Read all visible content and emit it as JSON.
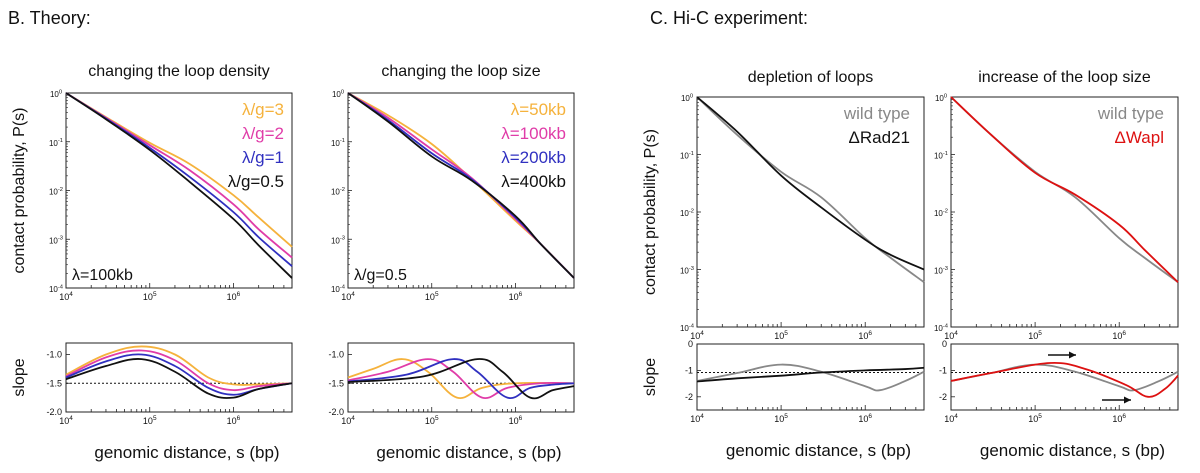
{
  "sections": {
    "theory": "B. Theory:",
    "hic": "C. Hi-C experiment:"
  },
  "colors": {
    "orange": "#f5b23c",
    "magenta": "#e03ca8",
    "blue": "#3030c0",
    "black": "#111111",
    "gray": "#888888",
    "red": "#dd1111"
  },
  "chart_data": [
    {
      "id": "theory-density-contact",
      "type": "line",
      "title": "changing the loop density",
      "ylabel": "contact probability, P(s)",
      "xscale": "log",
      "yscale": "log",
      "xlim": [
        10000,
        5000000
      ],
      "ylim": [
        0.0001,
        1
      ],
      "xticks": [
        "10^4",
        "10^5",
        "10^6"
      ],
      "yticks": [
        "10^0",
        "10^-1",
        "10^-2",
        "10^-3",
        "10^-4"
      ],
      "annotation": "λ=100kb",
      "legend_position": "top-right",
      "series": [
        {
          "name": "λ/g=3",
          "color": "#f5b23c",
          "x": [
            10000,
            30000,
            100000,
            300000,
            1000000,
            2000000,
            5000000
          ],
          "y": [
            1,
            0.32,
            0.095,
            0.035,
            0.008,
            0.0028,
            0.0007
          ]
        },
        {
          "name": "λ/g=2",
          "color": "#e03ca8",
          "x": [
            10000,
            30000,
            100000,
            300000,
            1000000,
            2000000,
            5000000
          ],
          "y": [
            1,
            0.31,
            0.085,
            0.026,
            0.0052,
            0.0016,
            0.00042
          ]
        },
        {
          "name": "λ/g=1",
          "color": "#3030c0",
          "x": [
            10000,
            30000,
            100000,
            300000,
            1000000,
            2000000,
            5000000
          ],
          "y": [
            1,
            0.3,
            0.075,
            0.019,
            0.0036,
            0.0011,
            0.00028
          ]
        },
        {
          "name": "λ/g=0.5",
          "color": "#111111",
          "x": [
            10000,
            30000,
            100000,
            300000,
            1000000,
            2000000,
            5000000
          ],
          "y": [
            1,
            0.29,
            0.068,
            0.015,
            0.0026,
            0.00075,
            0.00016
          ]
        }
      ]
    },
    {
      "id": "theory-density-slope",
      "type": "line",
      "ylabel": "slope",
      "xlabel": "genomic distance, s (bp)",
      "xscale": "log",
      "xlim": [
        10000,
        5000000
      ],
      "ylim": [
        -2.0,
        -0.8
      ],
      "xticks": [
        "10^4",
        "10^5",
        "10^6"
      ],
      "yticks": [
        "-1.0",
        "-1.5",
        "-2.0"
      ],
      "reference_line": -1.5,
      "series": [
        {
          "name": "λ/g=3",
          "color": "#f5b23c",
          "x": [
            10000,
            30000,
            80000,
            200000,
            500000,
            1000000,
            2000000,
            5000000
          ],
          "y": [
            -1.35,
            -1.0,
            -0.86,
            -1.0,
            -1.4,
            -1.52,
            -1.52,
            -1.5
          ]
        },
        {
          "name": "λ/g=2",
          "color": "#e03ca8",
          "x": [
            10000,
            30000,
            80000,
            200000,
            500000,
            1000000,
            2000000,
            5000000
          ],
          "y": [
            -1.38,
            -1.05,
            -0.93,
            -1.1,
            -1.5,
            -1.62,
            -1.55,
            -1.5
          ]
        },
        {
          "name": "λ/g=1",
          "color": "#3030c0",
          "x": [
            10000,
            30000,
            80000,
            200000,
            500000,
            1000000,
            2000000,
            5000000
          ],
          "y": [
            -1.4,
            -1.12,
            -1.0,
            -1.2,
            -1.58,
            -1.7,
            -1.6,
            -1.5
          ]
        },
        {
          "name": "λ/g=0.5",
          "color": "#111111",
          "x": [
            10000,
            30000,
            80000,
            200000,
            500000,
            1000000,
            2000000,
            5000000
          ],
          "y": [
            -1.43,
            -1.2,
            -1.08,
            -1.3,
            -1.68,
            -1.75,
            -1.6,
            -1.5
          ]
        }
      ]
    },
    {
      "id": "theory-size-contact",
      "type": "line",
      "title": "changing the loop size",
      "xscale": "log",
      "yscale": "log",
      "xlim": [
        10000,
        5000000
      ],
      "ylim": [
        0.0001,
        1
      ],
      "xticks": [
        "10^4",
        "10^5",
        "10^6"
      ],
      "yticks": [
        "10^0",
        "10^-1",
        "10^-2",
        "10^-3",
        "10^-4"
      ],
      "annotation": "λ/g=0.5",
      "legend_position": "top-right",
      "series": [
        {
          "name": "λ=50kb",
          "color": "#f5b23c",
          "x": [
            10000,
            30000,
            100000,
            300000,
            1000000,
            2000000,
            5000000
          ],
          "y": [
            1,
            0.35,
            0.09,
            0.017,
            0.0024,
            0.0008,
            0.00016
          ]
        },
        {
          "name": "λ=100kb",
          "color": "#e03ca8",
          "x": [
            10000,
            30000,
            100000,
            300000,
            1000000,
            2000000,
            5000000
          ],
          "y": [
            1,
            0.31,
            0.07,
            0.018,
            0.0026,
            0.0008,
            0.00016
          ]
        },
        {
          "name": "λ=200kb",
          "color": "#3030c0",
          "x": [
            10000,
            30000,
            100000,
            300000,
            1000000,
            2000000,
            5000000
          ],
          "y": [
            1,
            0.28,
            0.058,
            0.017,
            0.0028,
            0.0008,
            0.00016
          ]
        },
        {
          "name": "λ=400kb",
          "color": "#111111",
          "x": [
            10000,
            30000,
            100000,
            300000,
            1000000,
            2000000,
            5000000
          ],
          "y": [
            1,
            0.26,
            0.05,
            0.016,
            0.003,
            0.0008,
            0.00016
          ]
        }
      ]
    },
    {
      "id": "theory-size-slope",
      "type": "line",
      "xlabel": "genomic distance, s (bp)",
      "xscale": "log",
      "xlim": [
        10000,
        5000000
      ],
      "ylim": [
        -2.0,
        -0.8
      ],
      "xticks": [
        "10^4",
        "10^5",
        "10^6"
      ],
      "yticks": [
        "-1.0",
        "-1.5",
        "-2.0"
      ],
      "reference_line": -1.5,
      "series": [
        {
          "name": "λ=50kb",
          "color": "#f5b23c",
          "x": [
            10000,
            20000,
            45000,
            90000,
            200000,
            400000,
            1000000,
            5000000
          ],
          "y": [
            -1.4,
            -1.25,
            -1.08,
            -1.3,
            -1.75,
            -1.58,
            -1.5,
            -1.5
          ]
        },
        {
          "name": "λ=100kb",
          "color": "#e03ca8",
          "x": [
            10000,
            30000,
            90000,
            180000,
            400000,
            800000,
            2000000,
            5000000
          ],
          "y": [
            -1.45,
            -1.3,
            -1.08,
            -1.3,
            -1.75,
            -1.58,
            -1.5,
            -1.5
          ]
        },
        {
          "name": "λ=200kb",
          "color": "#3030c0",
          "x": [
            10000,
            50000,
            180000,
            350000,
            800000,
            1500000,
            3000000,
            5000000
          ],
          "y": [
            -1.47,
            -1.35,
            -1.08,
            -1.3,
            -1.75,
            -1.58,
            -1.52,
            -1.5
          ]
        },
        {
          "name": "λ=400kb",
          "color": "#111111",
          "x": [
            10000,
            80000,
            350000,
            700000,
            1500000,
            2800000,
            5000000
          ],
          "y": [
            -1.48,
            -1.38,
            -1.08,
            -1.3,
            -1.75,
            -1.62,
            -1.55
          ]
        }
      ]
    },
    {
      "id": "hic-depletion-contact",
      "type": "line",
      "title": "depletion of loops",
      "ylabel": "contact probability, P(s)",
      "xscale": "log",
      "yscale": "log",
      "xlim": [
        10000,
        5000000
      ],
      "ylim": [
        0.0001,
        1
      ],
      "xticks": [
        "10^4",
        "10^5",
        "10^6"
      ],
      "yticks": [
        "10^0",
        "10^-1",
        "10^-2",
        "10^-3",
        "10^-4"
      ],
      "legend_position": "top-right",
      "series": [
        {
          "name": "wild type",
          "color": "#888888",
          "x": [
            10000,
            30000,
            100000,
            300000,
            1000000,
            2000000,
            5000000
          ],
          "y": [
            1,
            0.22,
            0.05,
            0.018,
            0.0035,
            0.0016,
            0.0006
          ]
        },
        {
          "name": "ΔRad21",
          "color": "#111111",
          "x": [
            10000,
            30000,
            100000,
            300000,
            1000000,
            2000000,
            5000000
          ],
          "y": [
            1,
            0.25,
            0.043,
            0.012,
            0.0033,
            0.0018,
            0.001
          ]
        }
      ]
    },
    {
      "id": "hic-depletion-slope",
      "type": "line",
      "ylabel": "slope",
      "xlabel": "genomic distance, s (bp)",
      "xscale": "log",
      "xlim": [
        10000,
        5000000
      ],
      "ylim": [
        -2.5,
        0
      ],
      "xticks": [
        "10^4",
        "10^5",
        "10^6"
      ],
      "yticks": [
        "0",
        "-1",
        "-2"
      ],
      "reference_line": -1.08,
      "series": [
        {
          "name": "wild type",
          "color": "#888888",
          "x": [
            10000,
            30000,
            100000,
            300000,
            1000000,
            1500000,
            3000000,
            5000000
          ],
          "y": [
            -1.4,
            -1.1,
            -0.78,
            -1.05,
            -1.6,
            -1.75,
            -1.4,
            -1.05
          ]
        },
        {
          "name": "ΔRad21",
          "color": "#111111",
          "x": [
            10000,
            30000,
            100000,
            300000,
            1000000,
            3000000,
            5000000
          ],
          "y": [
            -1.42,
            -1.3,
            -1.2,
            -1.08,
            -1.0,
            -0.95,
            -0.9
          ]
        }
      ]
    },
    {
      "id": "hic-size-contact",
      "type": "line",
      "title": "increase of the loop size",
      "xscale": "log",
      "yscale": "log",
      "xlim": [
        10000,
        5000000
      ],
      "ylim": [
        0.0001,
        1
      ],
      "xticks": [
        "10^4",
        "10^5",
        "10^6"
      ],
      "yticks": [
        "10^0",
        "10^-1",
        "10^-2",
        "10^-3",
        "10^-4"
      ],
      "legend_position": "top-right",
      "series": [
        {
          "name": "wild type",
          "color": "#888888",
          "x": [
            10000,
            30000,
            100000,
            300000,
            1000000,
            2000000,
            5000000
          ],
          "y": [
            1,
            0.22,
            0.05,
            0.018,
            0.0035,
            0.0016,
            0.0006
          ]
        },
        {
          "name": "ΔWapl",
          "color": "#dd1111",
          "x": [
            10000,
            30000,
            100000,
            300000,
            1000000,
            2000000,
            5000000
          ],
          "y": [
            1,
            0.22,
            0.048,
            0.02,
            0.006,
            0.0022,
            0.0006
          ]
        }
      ]
    },
    {
      "id": "hic-size-slope",
      "type": "line",
      "xlabel": "genomic distance, s (bp)",
      "xscale": "log",
      "xlim": [
        10000,
        5000000
      ],
      "ylim": [
        -2.5,
        0
      ],
      "xticks": [
        "10^4",
        "10^5",
        "10^6"
      ],
      "yticks": [
        "0",
        "-1",
        "-2"
      ],
      "reference_line": -1.08,
      "series": [
        {
          "name": "wild type",
          "color": "#888888",
          "x": [
            10000,
            30000,
            100000,
            300000,
            1000000,
            1500000,
            3000000,
            5000000
          ],
          "y": [
            -1.4,
            -1.1,
            -0.78,
            -1.05,
            -1.6,
            -1.75,
            -1.4,
            -1.05
          ]
        },
        {
          "name": "ΔWapl",
          "color": "#dd1111",
          "x": [
            10000,
            30000,
            150000,
            400000,
            1200000,
            2200000,
            3500000,
            5000000
          ],
          "y": [
            -1.4,
            -1.1,
            -0.72,
            -0.95,
            -1.55,
            -2.0,
            -1.7,
            -1.2
          ]
        }
      ]
    }
  ],
  "tick_labels": {
    "x10_4": "10",
    "x10_4_sup": "4",
    "x10_5": "10",
    "x10_5_sup": "5",
    "x10_6": "10",
    "x10_6_sup": "6"
  }
}
